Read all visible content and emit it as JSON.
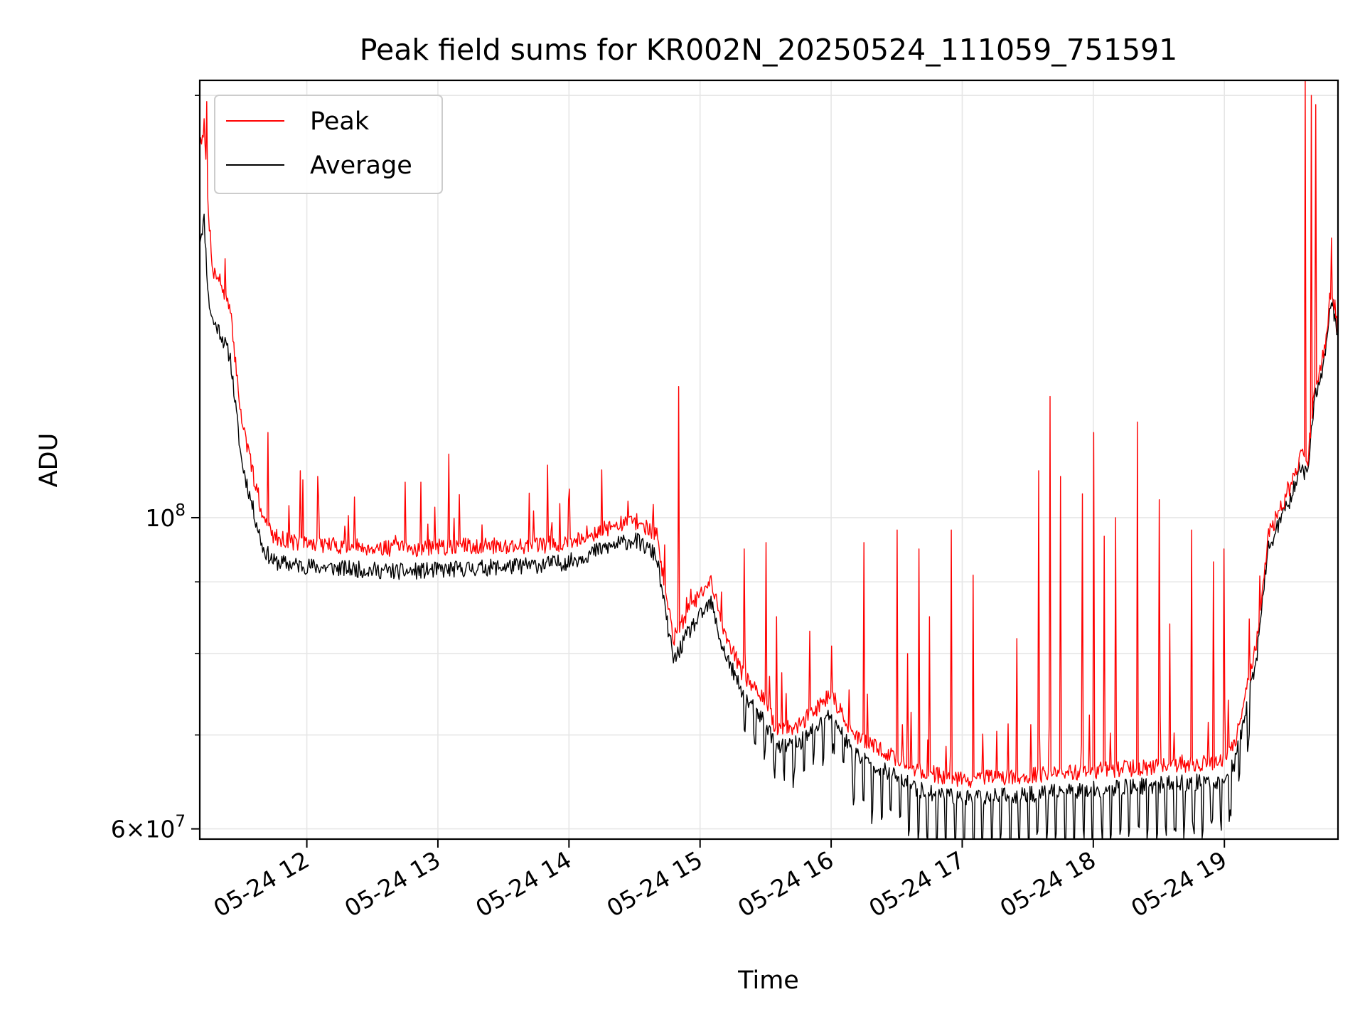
{
  "chart_data": {
    "type": "line",
    "title": "Peak field sums for KR002N_20250524_111059_751591",
    "xlabel": "Time",
    "ylabel": "ADU",
    "x_scale": "time",
    "y_scale": "log",
    "xlim": [
      "2025-05-24 11:11",
      "2025-05-24 19:52"
    ],
    "ylim": [
      59000000,
      205000000
    ],
    "x_ticks": [
      "2025-05-24 12:00",
      "2025-05-24 13:00",
      "2025-05-24 14:00",
      "2025-05-24 15:00",
      "2025-05-24 16:00",
      "2025-05-24 17:00",
      "2025-05-24 18:00",
      "2025-05-24 19:00"
    ],
    "x_tick_labels": [
      "05-24 12",
      "05-24 13",
      "05-24 14",
      "05-24 15",
      "05-24 16",
      "05-24 17",
      "05-24 18",
      "05-24 19"
    ],
    "y_major_ticks": [
      {
        "value": 100000000,
        "base": "10",
        "exp": "8"
      },
      {
        "value": 60000000,
        "mant": "6",
        "base": "10",
        "exp": "7"
      }
    ],
    "y_minor_ticks": [
      70000000,
      80000000,
      90000000,
      200000000
    ],
    "grid": true,
    "legend_position": "upper-left",
    "series": [
      {
        "name": "Peak",
        "color": "#ff0000",
        "base": [
          [
            "11:11",
            185000000
          ],
          [
            "11:13",
            190000000
          ],
          [
            "11:15",
            165000000
          ],
          [
            "11:17",
            150000000
          ],
          [
            "11:20",
            148000000
          ],
          [
            "11:25",
            140000000
          ],
          [
            "11:30",
            118000000
          ],
          [
            "11:35",
            108000000
          ],
          [
            "11:40",
            100000000
          ],
          [
            "11:45",
            97000000
          ],
          [
            "11:55",
            96000000
          ],
          [
            "12:15",
            95500000
          ],
          [
            "12:45",
            95000000
          ],
          [
            "13:15",
            95500000
          ],
          [
            "13:45",
            95500000
          ],
          [
            "14:00",
            96000000
          ],
          [
            "14:15",
            98000000
          ],
          [
            "14:30",
            99500000
          ],
          [
            "14:40",
            97500000
          ],
          [
            "14:45",
            87000000
          ],
          [
            "14:48",
            82000000
          ],
          [
            "14:55",
            86000000
          ],
          [
            "15:05",
            90000000
          ],
          [
            "15:10",
            84000000
          ],
          [
            "15:20",
            77000000
          ],
          [
            "15:30",
            74000000
          ],
          [
            "15:35",
            70500000
          ],
          [
            "15:45",
            71000000
          ],
          [
            "16:00",
            75000000
          ],
          [
            "16:10",
            70000000
          ],
          [
            "16:25",
            68000000
          ],
          [
            "16:40",
            66000000
          ],
          [
            "17:00",
            65000000
          ],
          [
            "17:30",
            65500000
          ],
          [
            "18:00",
            66000000
          ],
          [
            "18:30",
            66500000
          ],
          [
            "19:00",
            67000000
          ],
          [
            "19:05",
            69000000
          ],
          [
            "19:15",
            82000000
          ],
          [
            "19:20",
            97000000
          ],
          [
            "19:30",
            105000000
          ],
          [
            "19:35",
            111000000
          ],
          [
            "19:38",
            109000000
          ],
          [
            "19:41",
            123000000
          ],
          [
            "19:46",
            132000000
          ],
          [
            "19:49",
            147000000
          ],
          [
            "19:52",
            136000000
          ]
        ],
        "spikes": [
          [
            "11:14",
            198000000
          ],
          [
            "11:42",
            115000000
          ],
          [
            "11:57",
            108000000
          ],
          [
            "12:05",
            107000000
          ],
          [
            "12:45",
            106000000
          ],
          [
            "12:52",
            106000000
          ],
          [
            "13:05",
            111000000
          ],
          [
            "13:50",
            109000000
          ],
          [
            "14:50",
            124000000
          ],
          [
            "15:20",
            95000000
          ],
          [
            "15:30",
            96000000
          ],
          [
            "15:35",
            85000000
          ],
          [
            "15:50",
            83000000
          ],
          [
            "16:00",
            81000000
          ],
          [
            "16:15",
            96000000
          ],
          [
            "16:30",
            98000000
          ],
          [
            "16:35",
            80000000
          ],
          [
            "16:40",
            95000000
          ],
          [
            "16:45",
            85000000
          ],
          [
            "16:55",
            98000000
          ],
          [
            "17:05",
            91000000
          ],
          [
            "17:25",
            82000000
          ],
          [
            "17:35",
            108000000
          ],
          [
            "17:40",
            122000000
          ],
          [
            "17:45",
            107000000
          ],
          [
            "17:55",
            104000000
          ],
          [
            "18:00",
            115000000
          ],
          [
            "18:05",
            97000000
          ],
          [
            "18:10",
            100000000
          ],
          [
            "18:20",
            117000000
          ],
          [
            "18:30",
            103000000
          ],
          [
            "18:35",
            84000000
          ],
          [
            "18:45",
            98000000
          ],
          [
            "18:55",
            93000000
          ],
          [
            "19:00",
            95000000
          ],
          [
            "19:37",
            205000000
          ],
          [
            "19:40",
            200000000
          ],
          [
            "19:42",
            197000000
          ]
        ]
      },
      {
        "name": "Average",
        "color": "#000000",
        "base": [
          [
            "11:11",
            158000000
          ],
          [
            "11:13",
            163000000
          ],
          [
            "11:15",
            143000000
          ],
          [
            "11:17",
            138000000
          ],
          [
            "11:20",
            136000000
          ],
          [
            "11:25",
            130000000
          ],
          [
            "11:30",
            110000000
          ],
          [
            "11:35",
            102000000
          ],
          [
            "11:40",
            95000000
          ],
          [
            "11:45",
            93000000
          ],
          [
            "11:55",
            92500000
          ],
          [
            "12:15",
            92000000
          ],
          [
            "12:45",
            91500000
          ],
          [
            "13:15",
            92000000
          ],
          [
            "13:45",
            92500000
          ],
          [
            "14:00",
            93000000
          ],
          [
            "14:15",
            95000000
          ],
          [
            "14:30",
            96500000
          ],
          [
            "14:40",
            94000000
          ],
          [
            "14:45",
            84000000
          ],
          [
            "14:48",
            79000000
          ],
          [
            "14:55",
            83000000
          ],
          [
            "15:05",
            87000000
          ],
          [
            "15:10",
            81000000
          ],
          [
            "15:20",
            74500000
          ],
          [
            "15:30",
            71500000
          ],
          [
            "15:35",
            68500000
          ],
          [
            "15:45",
            69000000
          ],
          [
            "16:00",
            72500000
          ],
          [
            "16:10",
            68000000
          ],
          [
            "16:25",
            66000000
          ],
          [
            "16:40",
            64000000
          ],
          [
            "17:00",
            63000000
          ],
          [
            "17:30",
            63500000
          ],
          [
            "18:00",
            64000000
          ],
          [
            "18:30",
            64500000
          ],
          [
            "19:00",
            65000000
          ],
          [
            "19:05",
            67000000
          ],
          [
            "19:15",
            80000000
          ],
          [
            "19:20",
            95000000
          ],
          [
            "19:30",
            103000000
          ],
          [
            "19:35",
            109000000
          ],
          [
            "19:38",
            107000000
          ],
          [
            "19:41",
            121000000
          ],
          [
            "19:46",
            130000000
          ],
          [
            "19:49",
            144000000
          ],
          [
            "19:52",
            134000000
          ]
        ]
      }
    ]
  }
}
